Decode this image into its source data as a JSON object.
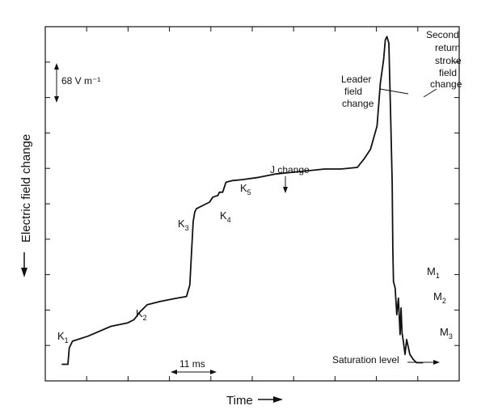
{
  "chart_data": {
    "type": "line",
    "xlabel": "Time",
    "ylabel": "Electric field change",
    "grid": false,
    "legend": "none",
    "scale_bars": {
      "vertical": "68 V m⁻¹",
      "horizontal": "11 ms"
    },
    "annotations": {
      "k1": "K1",
      "k2": "K2",
      "k3": "K3",
      "k4": "K4",
      "k5": "K5",
      "j_change": "J change",
      "leader": [
        "Leader",
        "field",
        "change"
      ],
      "return_stroke": [
        "Second",
        "return",
        "stroke",
        "field",
        "change"
      ],
      "m1": "M1",
      "m2": "M2",
      "m3": "M3",
      "saturation": "Saturation level"
    },
    "series": [
      {
        "x": [
          0,
          1.9,
          2.3,
          2.8,
          3.3,
          8,
          15,
          20,
          22,
          24,
          26,
          30,
          35,
          38,
          39,
          40,
          40.5,
          41,
          44,
          45,
          46,
          47.5,
          48,
          49,
          50,
          52,
          55,
          60,
          65,
          70,
          75,
          80,
          85,
          90,
          92,
          94,
          96,
          97,
          98,
          98.5,
          99,
          99.6,
          100,
          100.2,
          100.6,
          100.8,
          101,
          101.5,
          102,
          102.5,
          103,
          103.3,
          103.6,
          104,
          104.5,
          105,
          106,
          107,
          108,
          110
        ],
        "y": [
          0,
          0,
          0.5,
          0.6,
          0.7,
          0.85,
          1.15,
          1.25,
          1.35,
          1.6,
          1.8,
          1.9,
          2.0,
          2.05,
          2.4,
          4.3,
          4.6,
          4.7,
          4.85,
          4.9,
          5.05,
          5.1,
          5.2,
          5.2,
          5.5,
          5.55,
          5.58,
          5.65,
          5.75,
          5.8,
          5.85,
          5.9,
          5.9,
          5.95,
          6.2,
          6.5,
          7.2,
          8.5,
          9.2,
          9.8,
          9.9,
          9.7,
          8.0,
          7.2,
          5.5,
          3.5,
          2.5,
          2.3,
          1.5,
          2.0,
          0.9,
          1.7,
          0.95,
          0.7,
          0.3,
          0.75,
          0.3,
          0.15,
          0.05,
          0.05
        ]
      }
    ],
    "xlim": [
      -5,
      121
    ],
    "ylim": [
      -0.5,
      10.2
    ]
  }
}
